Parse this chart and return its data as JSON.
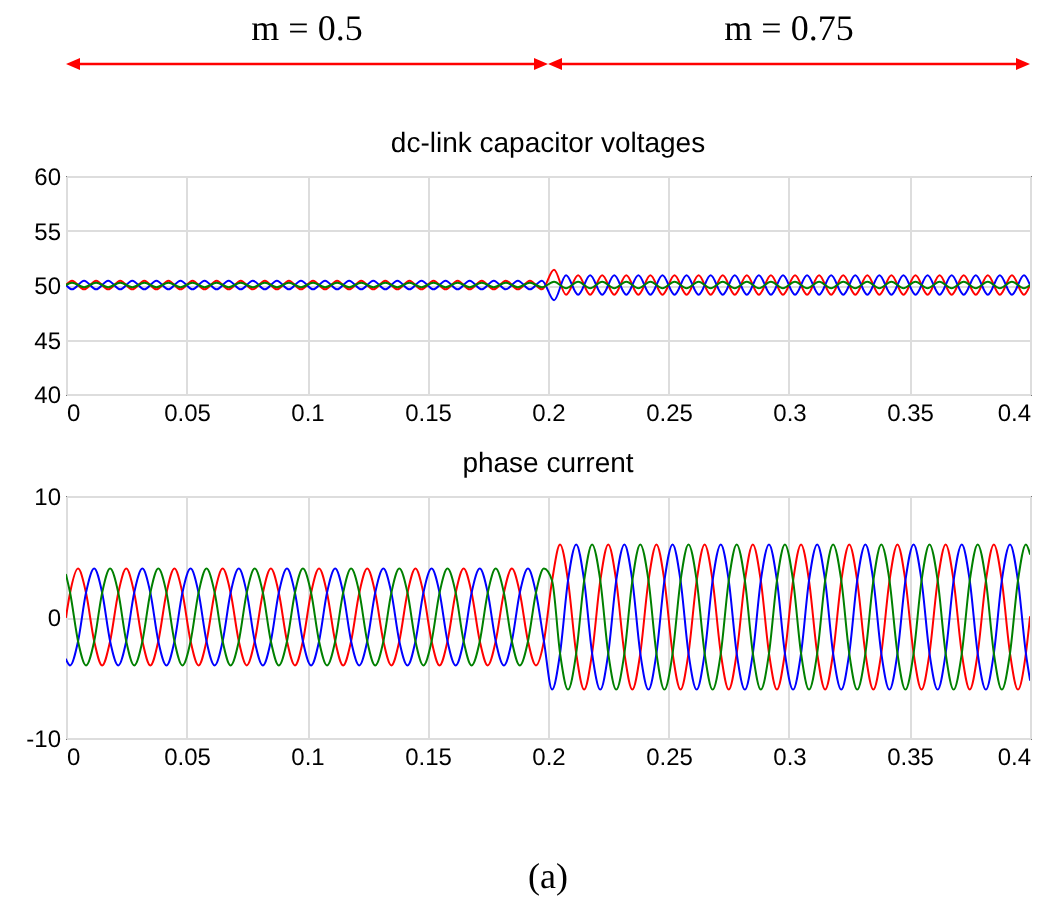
{
  "chart_data": [
    {
      "type": "line",
      "title": "dc-link capacitor voltages",
      "annotations": [
        "m = 0.5",
        "m = 0.75"
      ],
      "x": [
        0,
        0.0025,
        0.0075,
        0.0125,
        0.0175,
        0.0225,
        0.0275,
        0.0325,
        0.0375,
        0.0425,
        0.0475,
        0.0525,
        0.0575,
        0.0625,
        0.0675,
        0.0725,
        0.0775,
        0.0825,
        0.0875,
        0.0925,
        0.0975,
        0.1025,
        0.1075,
        0.1125,
        0.1175,
        0.1225,
        0.1275,
        0.1325,
        0.1375,
        0.1425,
        0.1475,
        0.1525,
        0.1575,
        0.1625,
        0.1675,
        0.1725,
        0.1775,
        0.1825,
        0.1875,
        0.1925,
        0.1975,
        0.2025,
        0.2075,
        0.2125,
        0.2175,
        0.2225,
        0.2275,
        0.2325,
        0.2375,
        0.2425,
        0.2475,
        0.2525,
        0.2575,
        0.2625,
        0.2675,
        0.2725,
        0.2775,
        0.2825,
        0.2875,
        0.2925,
        0.2975,
        0.3025,
        0.3075,
        0.3125,
        0.3175,
        0.3225,
        0.3275,
        0.3325,
        0.3375,
        0.3425,
        0.3475,
        0.3525,
        0.3575,
        0.3625,
        0.3675,
        0.3725,
        0.3775,
        0.3825,
        0.3875,
        0.3925,
        0.3975,
        0.4
      ],
      "series": [
        {
          "color": "#ff0000",
          "values": [
            50,
            50.4,
            49.6,
            50.4,
            49.6,
            50.4,
            49.6,
            50.4,
            49.6,
            50.4,
            49.6,
            50.4,
            49.6,
            50.4,
            49.6,
            50.4,
            49.6,
            50.4,
            49.6,
            50.4,
            49.6,
            50.4,
            49.6,
            50.4,
            49.6,
            50.4,
            49.6,
            50.4,
            49.6,
            50.4,
            49.6,
            50.4,
            49.6,
            50.4,
            49.6,
            50.4,
            49.6,
            50.4,
            49.6,
            50.4,
            49.6,
            51.4,
            49.1,
            50.9,
            49.1,
            50.9,
            49.1,
            50.9,
            49.1,
            50.9,
            49.1,
            50.9,
            49.1,
            50.9,
            49.1,
            50.9,
            49.1,
            50.9,
            49.1,
            50.9,
            49.1,
            50.9,
            49.1,
            50.9,
            49.1,
            50.9,
            49.1,
            50.9,
            49.1,
            50.9,
            49.1,
            50.9,
            49.1,
            50.9,
            49.1,
            50.9,
            49.1,
            50.9,
            49.1,
            50.9,
            49.1,
            50
          ]
        },
        {
          "color": "#0000ff",
          "values": [
            50,
            49.6,
            50.4,
            49.6,
            50.4,
            49.6,
            50.4,
            49.6,
            50.4,
            49.6,
            50.4,
            49.6,
            50.4,
            49.6,
            50.4,
            49.6,
            50.4,
            49.6,
            50.4,
            49.6,
            50.4,
            49.6,
            50.4,
            49.6,
            50.4,
            49.6,
            50.4,
            49.6,
            50.4,
            49.6,
            50.4,
            49.6,
            50.4,
            49.6,
            50.4,
            49.6,
            50.4,
            49.6,
            50.4,
            49.6,
            50.4,
            48.6,
            50.9,
            49.1,
            50.9,
            49.1,
            50.9,
            49.1,
            50.9,
            49.1,
            50.9,
            49.1,
            50.9,
            49.1,
            50.9,
            49.1,
            50.9,
            49.1,
            50.9,
            49.1,
            50.9,
            49.1,
            50.9,
            49.1,
            50.9,
            49.1,
            50.9,
            49.1,
            50.9,
            49.1,
            50.9,
            49.1,
            50.9,
            49.1,
            50.9,
            49.1,
            50.9,
            49.1,
            50.9,
            49.1,
            50.9,
            50
          ]
        },
        {
          "color": "#008000",
          "values": [
            50,
            50.2,
            49.8,
            50.2,
            49.8,
            50.2,
            49.8,
            50.2,
            49.8,
            50.2,
            49.8,
            50.2,
            49.8,
            50.2,
            49.8,
            50.2,
            49.8,
            50.2,
            49.8,
            50.2,
            49.8,
            50.2,
            49.8,
            50.2,
            49.8,
            50.2,
            49.8,
            50.2,
            49.8,
            50.2,
            49.8,
            50.2,
            49.8,
            50.2,
            49.8,
            50.2,
            49.8,
            50.2,
            49.8,
            50.2,
            49.8,
            50.3,
            49.7,
            50.3,
            49.7,
            50.3,
            49.7,
            50.3,
            49.7,
            50.3,
            49.7,
            50.3,
            49.7,
            50.3,
            49.7,
            50.3,
            49.7,
            50.3,
            49.7,
            50.3,
            49.7,
            50.3,
            49.7,
            50.3,
            49.7,
            50.3,
            49.7,
            50.3,
            49.7,
            50.3,
            49.7,
            50.3,
            49.7,
            50.3,
            49.7,
            50.3,
            49.7,
            50.3,
            49.7,
            50.3,
            49.7,
            50
          ]
        }
      ],
      "xlim": [
        0,
        0.4
      ],
      "xticks": [
        0,
        0.05,
        0.1,
        0.15,
        0.2,
        0.25,
        0.3,
        0.35,
        0.4
      ],
      "ylim": [
        40,
        60
      ],
      "yticks": [
        40,
        45,
        50,
        55,
        60
      ],
      "grid": true
    },
    {
      "type": "line",
      "title": "phase current",
      "annotations": [
        "(a)"
      ],
      "x": [
        0,
        0.0017,
        0.005,
        0.0083,
        0.0117,
        0.015,
        0.0183,
        0.0217,
        0.025,
        0.0283,
        0.0317,
        0.035,
        0.0383,
        0.0417,
        0.045,
        0.0483,
        0.0517,
        0.055,
        0.0583,
        0.0617,
        0.065,
        0.0683,
        0.0717,
        0.075,
        0.0783,
        0.0817,
        0.085,
        0.0883,
        0.0917,
        0.095,
        0.0983,
        0.1017,
        0.105,
        0.1083,
        0.1117,
        0.115,
        0.1183,
        0.1217,
        0.125,
        0.1283,
        0.1317,
        0.135,
        0.1383,
        0.1417,
        0.145,
        0.1483,
        0.1517,
        0.155,
        0.1583,
        0.1617,
        0.165,
        0.1683,
        0.1717,
        0.175,
        0.1783,
        0.1817,
        0.185,
        0.1883,
        0.1917,
        0.195,
        0.1983,
        0.2017,
        0.205,
        0.2083,
        0.2117,
        0.215,
        0.2183,
        0.2217,
        0.225,
        0.2283,
        0.2317,
        0.235,
        0.2383,
        0.2417,
        0.245,
        0.2483,
        0.2517,
        0.255,
        0.2583,
        0.2617,
        0.265,
        0.2683,
        0.2717,
        0.275,
        0.2783,
        0.2817,
        0.285,
        0.2883,
        0.2917,
        0.295,
        0.2983,
        0.3017,
        0.305,
        0.3083,
        0.3117,
        0.315,
        0.3183,
        0.3217,
        0.325,
        0.3283,
        0.3317,
        0.335,
        0.3383,
        0.3417,
        0.345,
        0.3483,
        0.3517,
        0.355,
        0.3583,
        0.3617,
        0.365,
        0.3683,
        0.3717,
        0.375,
        0.3783,
        0.3817,
        0.385,
        0.3883,
        0.3917,
        0.395,
        0.3983,
        0.4
      ],
      "series": [
        {
          "color": "#ff0000",
          "values": [
            0,
            2,
            4,
            2,
            -2,
            -4,
            -2,
            2,
            4,
            2,
            -2,
            -4,
            -2,
            2,
            4,
            2,
            -2,
            -4,
            -2,
            2,
            4,
            2,
            -2,
            -4,
            -2,
            2,
            4,
            2,
            -2,
            -4,
            -2,
            2,
            4,
            2,
            -2,
            -4,
            -2,
            2,
            4,
            2,
            -2,
            -4,
            -2,
            2,
            4,
            2,
            -2,
            -4,
            -2,
            2,
            4,
            2,
            -2,
            -4,
            -2,
            2,
            4,
            2,
            -2,
            -4,
            -2,
            3,
            6,
            3,
            -3,
            -6,
            -3,
            3,
            6,
            3,
            -3,
            -6,
            -3,
            3,
            6,
            3,
            -3,
            -6,
            -3,
            3,
            6,
            3,
            -3,
            -6,
            -3,
            3,
            6,
            3,
            -3,
            -6,
            -3,
            3,
            6,
            3,
            -3,
            -6,
            -3,
            3,
            6,
            3,
            -3,
            -6,
            -3,
            3,
            6,
            3,
            -3,
            -6,
            -3,
            3,
            6,
            3,
            -3,
            -6,
            -3,
            3,
            6,
            3,
            -3,
            -6,
            -3,
            0
          ]
        },
        {
          "color": "#0000ff",
          "values": [
            -3.5,
            -4,
            -2,
            2,
            4,
            2,
            -2,
            -4,
            -2,
            2,
            4,
            2,
            -2,
            -4,
            -2,
            2,
            4,
            2,
            -2,
            -4,
            -2,
            2,
            4,
            2,
            -2,
            -4,
            -2,
            2,
            4,
            2,
            -2,
            -4,
            -2,
            2,
            4,
            2,
            -2,
            -4,
            -2,
            2,
            4,
            2,
            -2,
            -4,
            -2,
            2,
            4,
            2,
            -2,
            -4,
            -2,
            2,
            4,
            2,
            -2,
            -4,
            -2,
            2,
            4,
            2,
            -2,
            -6,
            -3,
            3,
            6,
            3,
            -3,
            -6,
            -3,
            3,
            6,
            3,
            -3,
            -6,
            -3,
            3,
            6,
            3,
            -3,
            -6,
            -3,
            3,
            6,
            3,
            -3,
            -6,
            -3,
            3,
            6,
            3,
            -3,
            -6,
            -3,
            3,
            6,
            3,
            -3,
            -6,
            -3,
            3,
            6,
            3,
            -3,
            -6,
            -3,
            3,
            6,
            3,
            -3,
            -6,
            -3,
            3,
            6,
            3,
            -3,
            -6,
            -3,
            3,
            6,
            3,
            -3,
            -5.2
          ]
        },
        {
          "color": "#008000",
          "values": [
            3.5,
            2,
            -2,
            -4,
            -2,
            2,
            4,
            2,
            -2,
            -4,
            -2,
            2,
            4,
            2,
            -2,
            -4,
            -2,
            2,
            4,
            2,
            -2,
            -4,
            -2,
            2,
            4,
            2,
            -2,
            -4,
            -2,
            2,
            4,
            2,
            -2,
            -4,
            -2,
            2,
            4,
            2,
            -2,
            -4,
            -2,
            2,
            4,
            2,
            -2,
            -4,
            -2,
            2,
            4,
            2,
            -2,
            -4,
            -2,
            2,
            4,
            2,
            -2,
            -4,
            -2,
            2,
            4,
            3,
            -3,
            -6,
            -3,
            3,
            6,
            3,
            -3,
            -6,
            -3,
            3,
            6,
            3,
            -3,
            -6,
            -3,
            3,
            6,
            3,
            -3,
            -6,
            -3,
            3,
            6,
            3,
            -3,
            -6,
            -3,
            3,
            6,
            3,
            -3,
            -6,
            -3,
            3,
            6,
            3,
            -3,
            -6,
            -3,
            3,
            6,
            3,
            -3,
            -6,
            -3,
            3,
            6,
            3,
            -3,
            -6,
            -3,
            3,
            6,
            3,
            -3,
            -6,
            -3,
            3,
            6,
            5.2
          ]
        }
      ],
      "xlim": [
        0,
        0.4
      ],
      "xticks": [
        0,
        0.05,
        0.1,
        0.15,
        0.2,
        0.25,
        0.3,
        0.35,
        0.4
      ],
      "ylim": [
        -10,
        10
      ],
      "yticks": [
        -10,
        0,
        10
      ],
      "grid": true
    }
  ]
}
